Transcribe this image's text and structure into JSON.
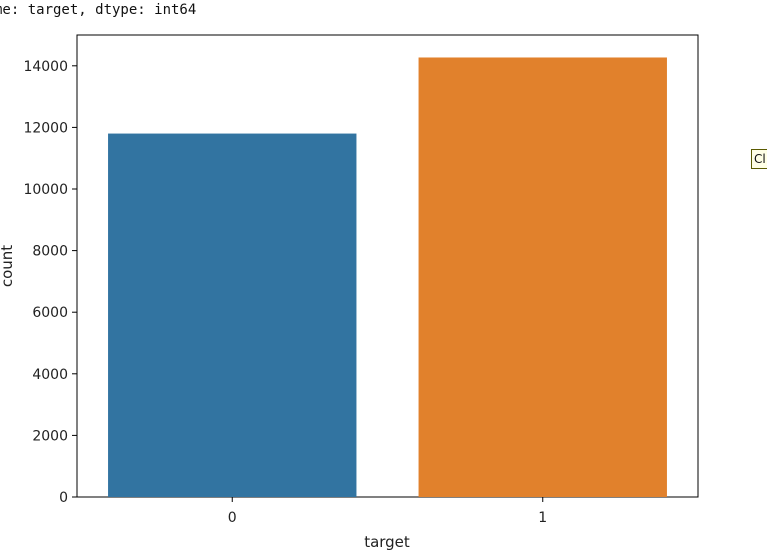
{
  "output": {
    "text": "me: target, dtype: int64"
  },
  "tooltip": {
    "text": "Cl"
  },
  "chart_data": {
    "type": "bar",
    "categories": [
      "0",
      "1"
    ],
    "values": [
      11800,
      14270
    ],
    "colors": [
      "#3274a1",
      "#e1812c"
    ],
    "xlabel": "target",
    "ylabel": "count",
    "ylim": [
      0,
      15000
    ],
    "yticks": [
      0,
      2000,
      4000,
      6000,
      8000,
      10000,
      12000,
      14000
    ],
    "grid": false,
    "legend": "none"
  }
}
